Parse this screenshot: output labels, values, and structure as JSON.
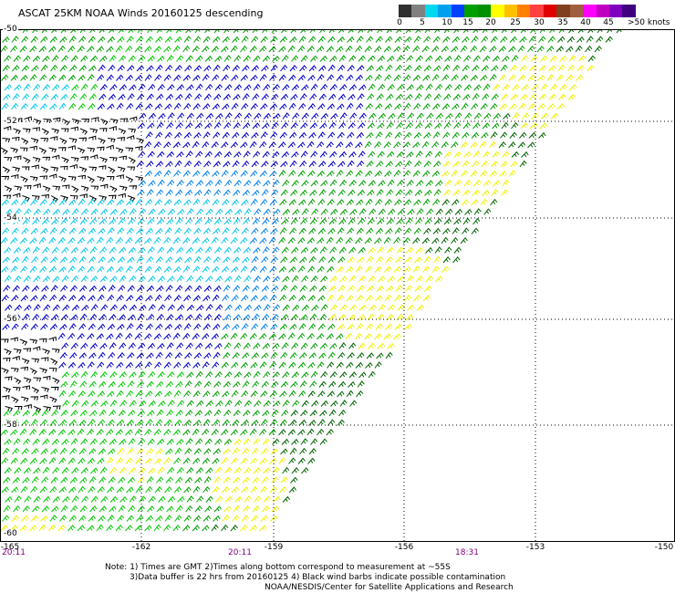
{
  "title": "ASCAT 25KM NOAA Winds 20160125 descending",
  "colorbar": {
    "colors": [
      "#303030",
      "#808080",
      "#00d8f0",
      "#00a0f0",
      "#0040ff",
      "#00a000",
      "#009000",
      "#ffff00",
      "#ffc000",
      "#ff8000",
      "#ff4040",
      "#e00000",
      "#804020",
      "#a06040",
      "#ff00ff",
      "#c000c0",
      "#8000c0",
      "#400080"
    ],
    "labels": [
      "0",
      "5",
      "10",
      "15",
      "20",
      "25",
      "30",
      "35",
      "40",
      "45"
    ],
    "unit": ">50 knots"
  },
  "lat_labels": [
    "-50",
    "-52",
    "-54",
    "-56",
    "-58",
    "-60"
  ],
  "lon_labels": [
    "-165",
    "-162",
    "-159",
    "-156",
    "-153",
    "-150"
  ],
  "time_labels": [
    "20:11",
    "20:11",
    "18:31"
  ],
  "notes": [
    "Note: 1) Times are GMT 2)Times along bottom correspond to measurement at ~55S",
    "3)Data buffer is 22 hrs from 20160125 4) Black wind barbs indicate possible contamination",
    "NOAA/NESDIS/Center for Satellite Applications and Research"
  ],
  "wind_colors": {
    "contaminated": "#000000",
    "cyan": "#00c8e8",
    "light_blue": "#0080f0",
    "blue": "#0000c8",
    "green_light": "#00c800",
    "green": "#00a000",
    "green_dark": "#006400",
    "yellow": "#f0f000"
  }
}
